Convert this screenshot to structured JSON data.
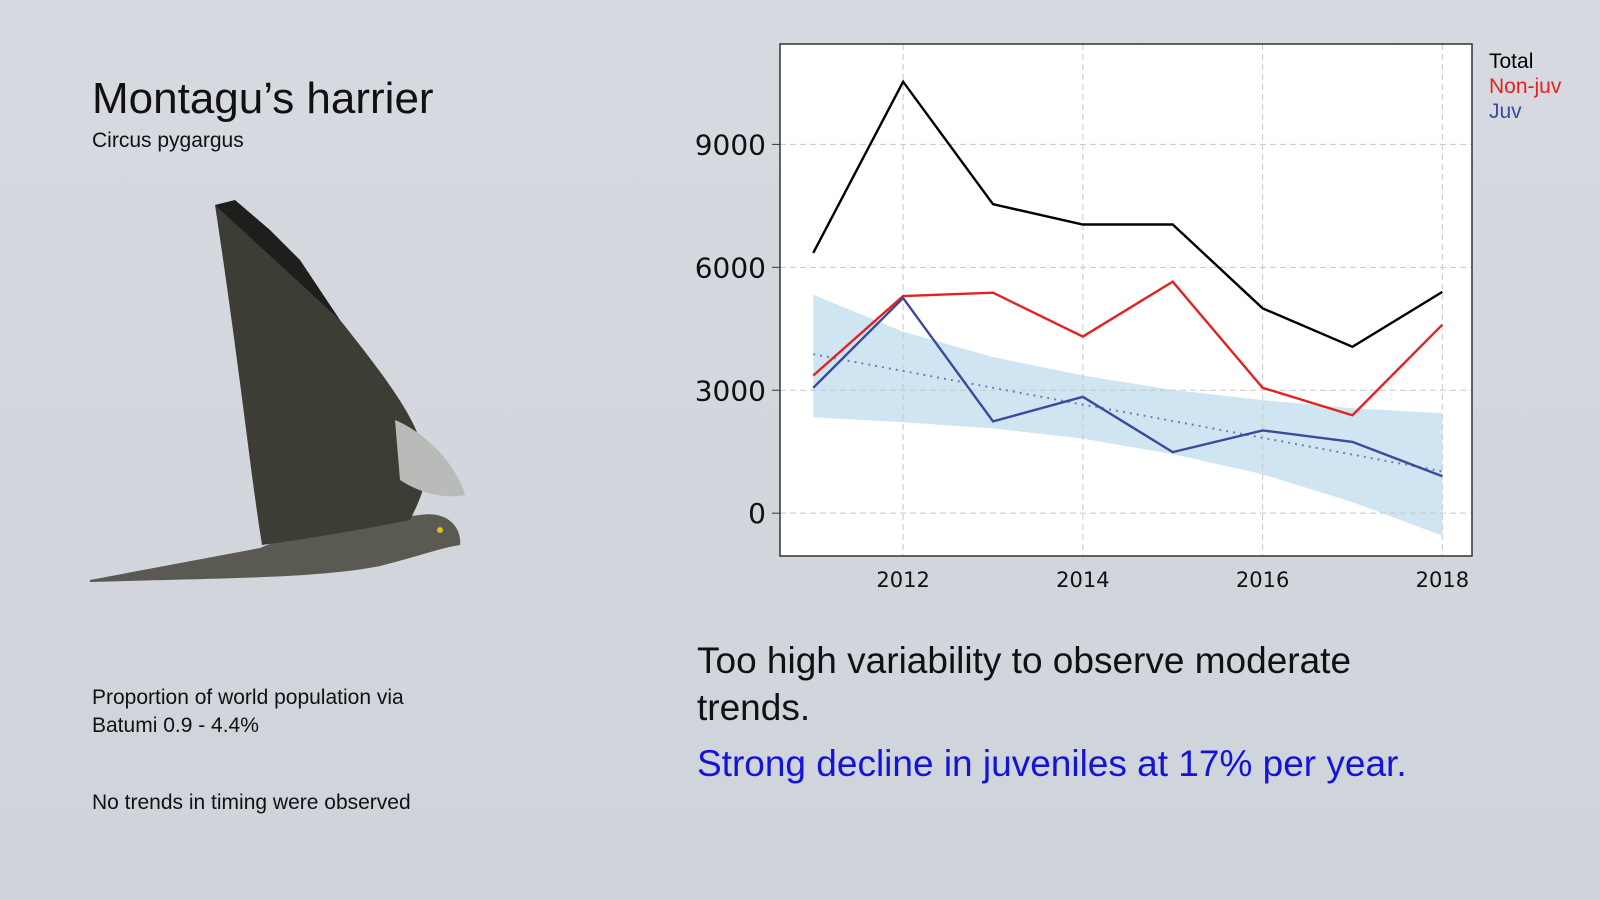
{
  "slide": {
    "title": "Montagu’s harrier",
    "subtitle": "Circus pygargus",
    "notes": [
      "Proportion of  world population via",
      "Batumi 0.9 - 4.4%",
      "No trends in timing were observed"
    ],
    "conclusion": [
      "Too high variability to observe moderate",
      "trends."
    ],
    "highlight": "Strong decline in juveniles at 17% per year."
  },
  "chart_data": {
    "type": "line",
    "x": [
      2011,
      2012,
      2013,
      2014,
      2015,
      2016,
      2017,
      2018
    ],
    "series": [
      {
        "name": "Total",
        "color": "#000000",
        "values": [
          6350,
          10530,
          7540,
          7045,
          7045,
          5000,
          4060,
          5400
        ]
      },
      {
        "name": "Non-juv",
        "color": "#e32222",
        "values": [
          3360,
          5300,
          5380,
          4310,
          5650,
          3060,
          2390,
          4600
        ]
      },
      {
        "name": "Juv",
        "color": "#3b4a9a",
        "values": [
          3060,
          5250,
          2240,
          2840,
          1490,
          2020,
          1740,
          900
        ]
      }
    ],
    "trend": {
      "color": "#6f7fb0",
      "values": [
        3880,
        3470,
        3060,
        2650,
        2250,
        1840,
        1430,
        1020
      ]
    },
    "band": {
      "color": "#cfe6f2",
      "upper": [
        5330,
        4430,
        3810,
        3360,
        3010,
        2760,
        2560,
        2440
      ],
      "lower": [
        2340,
        2220,
        2070,
        1820,
        1440,
        950,
        270,
        -550
      ]
    },
    "xlim": [
      2010.63,
      2018.33
    ],
    "ylim": [
      -1045,
      11450
    ],
    "xticks": [
      2012,
      2014,
      2016,
      2018
    ],
    "yticks": [
      0,
      3000,
      6000,
      9000
    ],
    "grid": true
  }
}
